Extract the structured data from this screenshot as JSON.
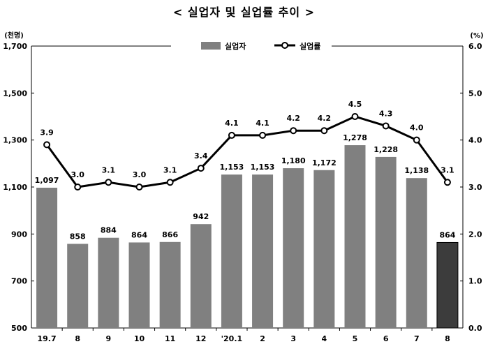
{
  "title": "< 실업자 및 실업률 추이 >",
  "chart_data": {
    "type": "bar",
    "title": "< 실업자 및 실업률 추이 >",
    "categories": [
      "19.7",
      "8",
      "9",
      "10",
      "11",
      "12",
      "'20.1",
      "2",
      "3",
      "4",
      "5",
      "6",
      "7",
      "8"
    ],
    "series": [
      {
        "name": "실업자",
        "type": "bar",
        "axis": "left",
        "values": [
          1097,
          858,
          884,
          864,
          866,
          942,
          1153,
          1153,
          1180,
          1172,
          1278,
          1228,
          1138,
          864
        ],
        "labels": [
          "1,097",
          "858",
          "884",
          "864",
          "866",
          "942",
          "1,153",
          "1,153",
          "1,180",
          "1,172",
          "1,278",
          "1,228",
          "1,138",
          "864"
        ],
        "color": "#808080",
        "highlight_last_color": "#3c3c3c"
      },
      {
        "name": "실업률",
        "type": "line",
        "axis": "right",
        "values": [
          3.9,
          3.0,
          3.1,
          3.0,
          3.1,
          3.4,
          4.1,
          4.1,
          4.2,
          4.2,
          4.5,
          4.3,
          4.0,
          3.1
        ],
        "labels": [
          "3.9",
          "3.0",
          "3.1",
          "3.0",
          "3.1",
          "3.4",
          "4.1",
          "4.1",
          "4.2",
          "4.2",
          "4.5",
          "4.3",
          "4.0",
          "3.1"
        ],
        "color": "#000000"
      }
    ],
    "y_left": {
      "unit": "(천명)",
      "ylim": [
        500,
        1700
      ],
      "ticks": [
        500,
        700,
        900,
        1100,
        1300,
        1500,
        1700
      ],
      "tick_labels": [
        "500",
        "700",
        "900",
        "1,100",
        "1,300",
        "1,500",
        "1,700"
      ]
    },
    "y_right": {
      "unit": "(%)",
      "ylim": [
        0,
        6
      ],
      "ticks": [
        0,
        1,
        2,
        3,
        4,
        5,
        6
      ],
      "tick_labels": [
        "0.0",
        "1.0",
        "2.0",
        "3.0",
        "4.0",
        "5.0",
        "6.0"
      ]
    },
    "grid": false,
    "legend": "top-center"
  }
}
